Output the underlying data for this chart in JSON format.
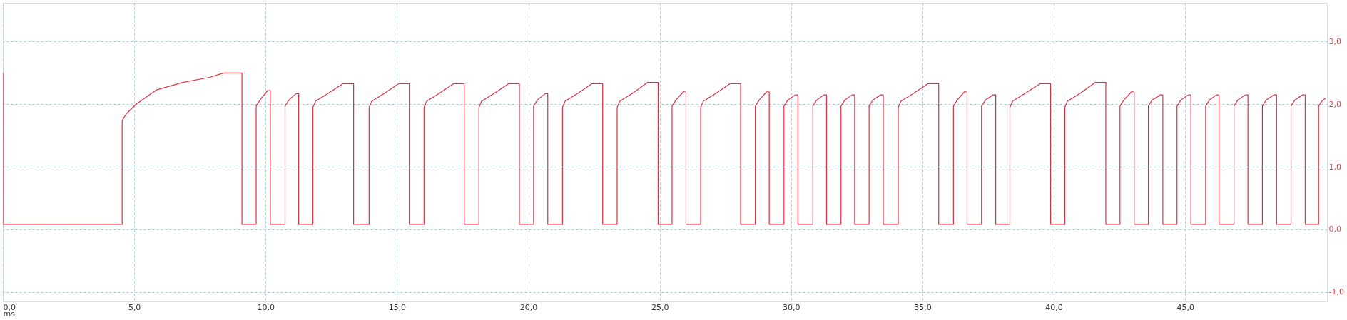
{
  "chart_data": {
    "type": "line",
    "xlabel": "ms",
    "x": [
      0,
      0,
      4.54,
      4.54,
      4.7,
      5.07,
      5.85,
      6.85,
      7.86,
      8.41,
      9.1,
      9.1,
      9.64,
      9.64,
      9.79,
      10.08,
      10.18,
      10.18,
      10.74,
      10.74,
      10.89,
      11.16,
      11.26,
      11.26,
      11.8,
      11.8,
      11.9,
      12.4,
      12.95,
      13.35,
      13.35,
      13.94,
      13.94,
      14.04,
      14.54,
      15.07,
      15.47,
      15.47,
      16.03,
      16.03,
      16.13,
      16.63,
      17.16,
      17.56,
      17.56,
      18.12,
      18.12,
      18.22,
      18.72,
      19.26,
      19.66,
      19.66,
      20.2,
      20.2,
      20.35,
      20.64,
      20.74,
      20.74,
      21.3,
      21.3,
      21.4,
      21.9,
      22.43,
      22.83,
      22.83,
      23.38,
      23.38,
      23.48,
      23.98,
      24.54,
      24.94,
      24.94,
      25.47,
      25.47,
      25.62,
      25.9,
      26.0,
      26.0,
      26.56,
      26.56,
      26.66,
      27.16,
      27.68,
      28.08,
      28.08,
      28.64,
      28.64,
      28.79,
      29.07,
      29.17,
      29.17,
      29.73,
      29.73,
      29.88,
      30.16,
      30.26,
      30.26,
      30.83,
      30.83,
      30.98,
      31.25,
      31.35,
      31.35,
      31.9,
      31.9,
      32.05,
      32.32,
      32.42,
      32.42,
      32.97,
      32.97,
      33.12,
      33.41,
      33.51,
      33.51,
      34.08,
      34.08,
      34.18,
      34.68,
      35.22,
      35.62,
      35.62,
      36.18,
      36.18,
      36.33,
      36.6,
      36.7,
      36.7,
      37.25,
      37.25,
      37.4,
      37.69,
      37.79,
      37.79,
      38.33,
      38.33,
      38.43,
      38.93,
      39.48,
      39.88,
      39.88,
      40.42,
      40.42,
      40.52,
      41.02,
      41.58,
      41.98,
      41.98,
      42.52,
      42.52,
      42.67,
      42.96,
      43.06,
      43.06,
      43.6,
      43.6,
      43.75,
      44.05,
      44.15,
      44.15,
      44.69,
      44.69,
      44.84,
      45.12,
      45.22,
      45.22,
      45.78,
      45.78,
      45.93,
      46.19,
      46.29,
      46.29,
      46.86,
      46.86,
      47.01,
      47.29,
      47.39,
      47.39,
      47.94,
      47.94,
      48.09,
      48.38,
      48.48,
      48.48,
      49.03,
      49.03,
      49.18,
      49.47,
      49.57,
      49.57,
      50.08,
      50.08,
      50.2,
      50.35
    ],
    "series": [
      {
        "color": "#e03040",
        "values": [
          2.5,
          0.08,
          0.08,
          1.74,
          1.85,
          2.0,
          2.23,
          2.35,
          2.43,
          2.5,
          2.5,
          0.08,
          0.08,
          1.97,
          2.07,
          2.22,
          2.22,
          0.08,
          0.08,
          1.97,
          2.07,
          2.17,
          2.17,
          0.08,
          0.08,
          1.95,
          2.05,
          2.18,
          2.33,
          2.33,
          0.08,
          0.08,
          1.95,
          2.05,
          2.18,
          2.33,
          2.33,
          0.08,
          0.08,
          1.95,
          2.05,
          2.18,
          2.33,
          2.33,
          0.08,
          0.08,
          1.95,
          2.05,
          2.18,
          2.33,
          2.33,
          0.08,
          0.08,
          1.97,
          2.07,
          2.17,
          2.17,
          0.08,
          0.08,
          1.95,
          2.05,
          2.18,
          2.33,
          2.33,
          0.08,
          0.08,
          1.95,
          2.05,
          2.18,
          2.35,
          2.35,
          0.08,
          0.08,
          1.97,
          2.07,
          2.2,
          2.2,
          0.08,
          0.08,
          1.95,
          2.05,
          2.18,
          2.33,
          2.33,
          0.08,
          0.08,
          1.97,
          2.07,
          2.2,
          2.2,
          0.08,
          0.08,
          1.97,
          2.07,
          2.15,
          2.15,
          0.08,
          0.08,
          1.97,
          2.07,
          2.15,
          2.15,
          0.08,
          0.08,
          1.97,
          2.07,
          2.15,
          2.15,
          0.08,
          0.08,
          1.97,
          2.07,
          2.15,
          2.15,
          0.08,
          0.08,
          1.95,
          2.05,
          2.18,
          2.33,
          2.33,
          0.08,
          0.08,
          1.97,
          2.07,
          2.2,
          2.2,
          0.08,
          0.08,
          1.97,
          2.07,
          2.15,
          2.15,
          0.08,
          0.08,
          1.95,
          2.05,
          2.18,
          2.33,
          2.33,
          0.08,
          0.08,
          1.95,
          2.05,
          2.18,
          2.35,
          2.35,
          0.08,
          0.08,
          1.97,
          2.07,
          2.2,
          2.2,
          0.08,
          0.08,
          1.97,
          2.07,
          2.15,
          2.15,
          0.08,
          0.08,
          1.97,
          2.07,
          2.15,
          2.15,
          0.08,
          0.08,
          1.97,
          2.07,
          2.15,
          2.15,
          0.08,
          0.08,
          1.97,
          2.07,
          2.15,
          2.15,
          0.08,
          0.08,
          1.97,
          2.07,
          2.15,
          2.15,
          0.08,
          0.08,
          1.97,
          2.07,
          2.15,
          2.15,
          0.08,
          0.08,
          1.97,
          2.05,
          2.1
        ]
      }
    ],
    "xlim": [
      0,
      50.4
    ],
    "xticks": [
      {
        "value": 0,
        "label": "0,0"
      },
      {
        "value": 5,
        "label": "5,0"
      },
      {
        "value": 10,
        "label": "10,0"
      },
      {
        "value": 15,
        "label": "15,0"
      },
      {
        "value": 20,
        "label": "20,0"
      },
      {
        "value": 25,
        "label": "25,0"
      },
      {
        "value": 30,
        "label": "30,0"
      },
      {
        "value": 35,
        "label": "35,0"
      },
      {
        "value": 40,
        "label": "40,0"
      },
      {
        "value": 45,
        "label": "45,0"
      }
    ],
    "ylim": [
      -1.15,
      3.62
    ],
    "yticks": [
      {
        "value": -1,
        "label": "-1,0"
      },
      {
        "value": 0,
        "label": "0,0"
      },
      {
        "value": 1,
        "label": "1,0"
      },
      {
        "value": 2,
        "label": "2,0"
      },
      {
        "value": 3,
        "label": "3,0"
      }
    ],
    "grid": true,
    "marker": "none",
    "line_style": "solid"
  }
}
